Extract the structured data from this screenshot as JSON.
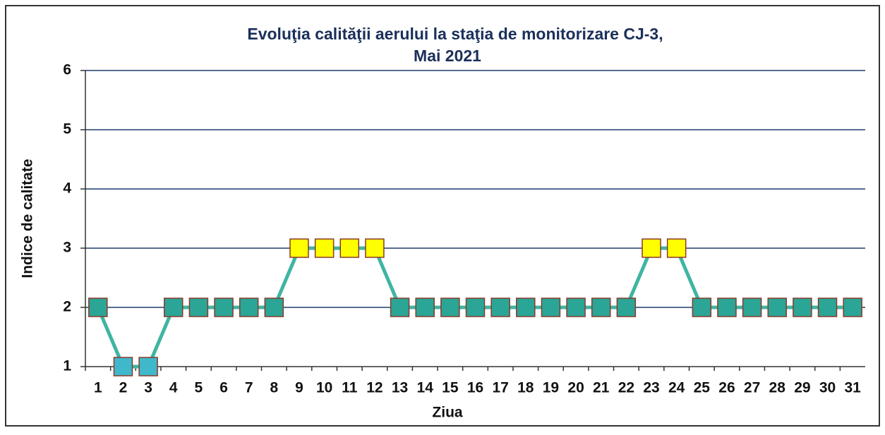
{
  "chart_data": {
    "type": "line",
    "title": "Evoluţia calităţii aerului la staţia de monitorizare CJ-3,",
    "subtitle": "Mai 2021",
    "x_label": "Ziua",
    "y_label": "Indice de calitate",
    "categories": [
      "1",
      "2",
      "3",
      "4",
      "5",
      "6",
      "7",
      "8",
      "9",
      "10",
      "11",
      "12",
      "13",
      "14",
      "15",
      "16",
      "17",
      "18",
      "19",
      "20",
      "21",
      "22",
      "23",
      "24",
      "25",
      "26",
      "27",
      "28",
      "29",
      "30",
      "31"
    ],
    "series": [
      {
        "name": "Indice de calitate",
        "color": "#3fb5a3",
        "values": [
          2,
          1,
          1,
          2,
          2,
          2,
          2,
          2,
          3,
          3,
          3,
          3,
          2,
          2,
          2,
          2,
          2,
          2,
          2,
          2,
          2,
          2,
          3,
          3,
          2,
          2,
          2,
          2,
          2,
          2,
          2
        ],
        "point_colors": [
          "#2aa596",
          "#40b8cc",
          "#40b8cc",
          "#2aa596",
          "#2aa596",
          "#2aa596",
          "#2aa596",
          "#2aa596",
          "#ffff00",
          "#ffff00",
          "#ffff00",
          "#ffff00",
          "#2aa596",
          "#2aa596",
          "#2aa596",
          "#2aa596",
          "#2aa596",
          "#2aa596",
          "#2aa596",
          "#2aa596",
          "#2aa596",
          "#2aa596",
          "#ffff00",
          "#ffff00",
          "#2aa596",
          "#2aa596",
          "#2aa596",
          "#2aa596",
          "#2aa596",
          "#2aa596",
          "#2aa596"
        ]
      }
    ],
    "ylim": [
      1,
      6
    ],
    "yticks": [
      1,
      2,
      3,
      4,
      5,
      6
    ],
    "grid": true,
    "grid_color": "#1f3c6e"
  }
}
